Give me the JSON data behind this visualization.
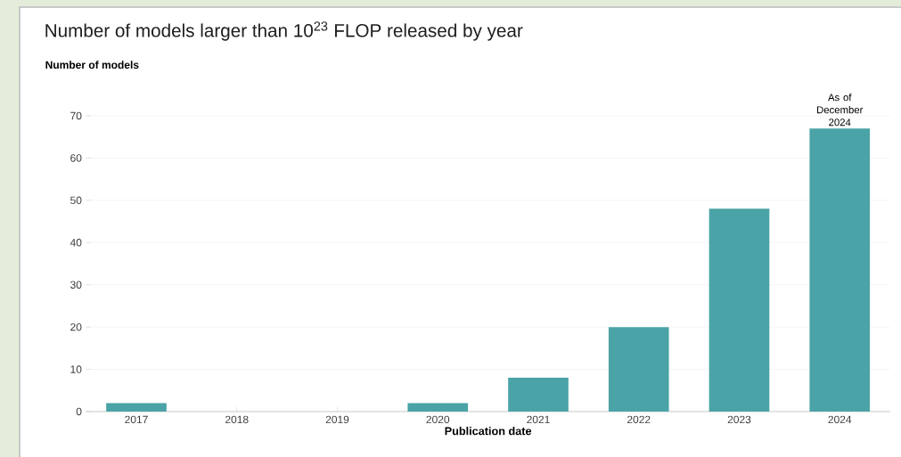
{
  "chart_data": {
    "type": "bar",
    "title": "Number of models larger than 10$^{23}$ FLOP released by year",
    "ylabel": "Number of models",
    "xlabel": "Publication date",
    "categories": [
      "2017",
      "2018",
      "2019",
      "2020",
      "2021",
      "2022",
      "2023",
      "2024"
    ],
    "values": [
      2,
      0,
      0,
      2,
      8,
      20,
      48,
      67
    ],
    "color": "#4aa3a6",
    "ylim": [
      0,
      70
    ],
    "yticks": [
      0,
      10,
      20,
      30,
      40,
      50,
      60,
      70
    ],
    "grid": "y",
    "annotations": [
      {
        "text": "As of December 2024",
        "x": "2024",
        "y": 67
      }
    ]
  }
}
